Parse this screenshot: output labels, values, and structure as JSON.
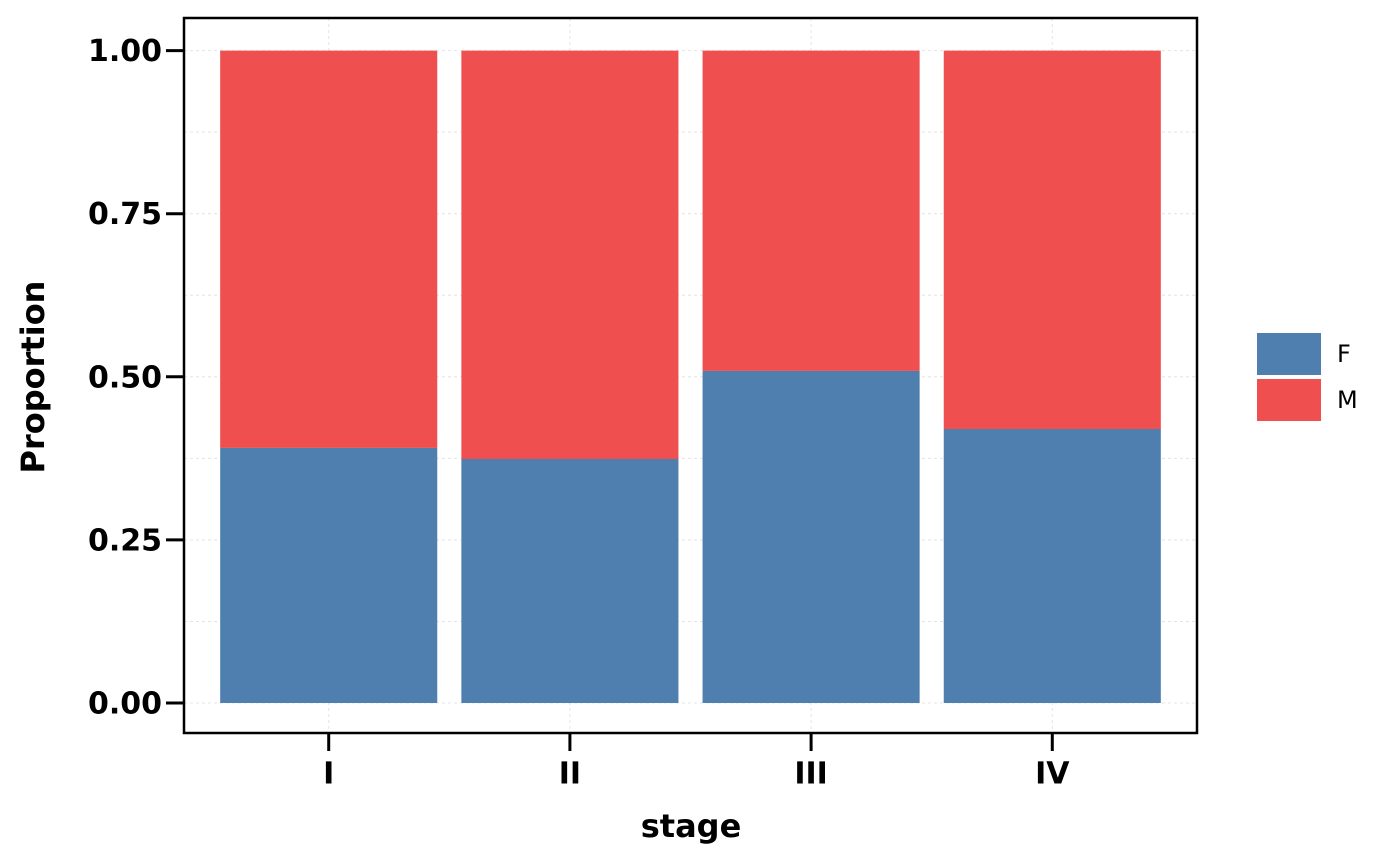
{
  "chart_data": {
    "type": "stacked-bar",
    "x_label": "stage",
    "y_label": "Proportion",
    "categories": [
      "I",
      "II",
      "III",
      "IV"
    ],
    "series": [
      {
        "name": "F",
        "color": "#4e7fae",
        "values": [
          0.391,
          0.374,
          0.509,
          0.42
        ]
      },
      {
        "name": "M",
        "color": "#f04f4f",
        "values": [
          0.609,
          0.626,
          0.491,
          0.58
        ]
      }
    ],
    "ylim": [
      -0.046,
      1.05
    ],
    "yticks": [
      {
        "value": 0,
        "label": "0.00"
      },
      {
        "value": 0.25,
        "label": "0.25"
      },
      {
        "value": 0.5,
        "label": "0.50"
      },
      {
        "value": 0.75,
        "label": "0.75"
      },
      {
        "value": 1,
        "label": "1.00"
      }
    ],
    "minor_yticks": [
      0.125,
      0.375,
      0.625,
      0.875
    ],
    "grid": true,
    "legend": "right"
  }
}
